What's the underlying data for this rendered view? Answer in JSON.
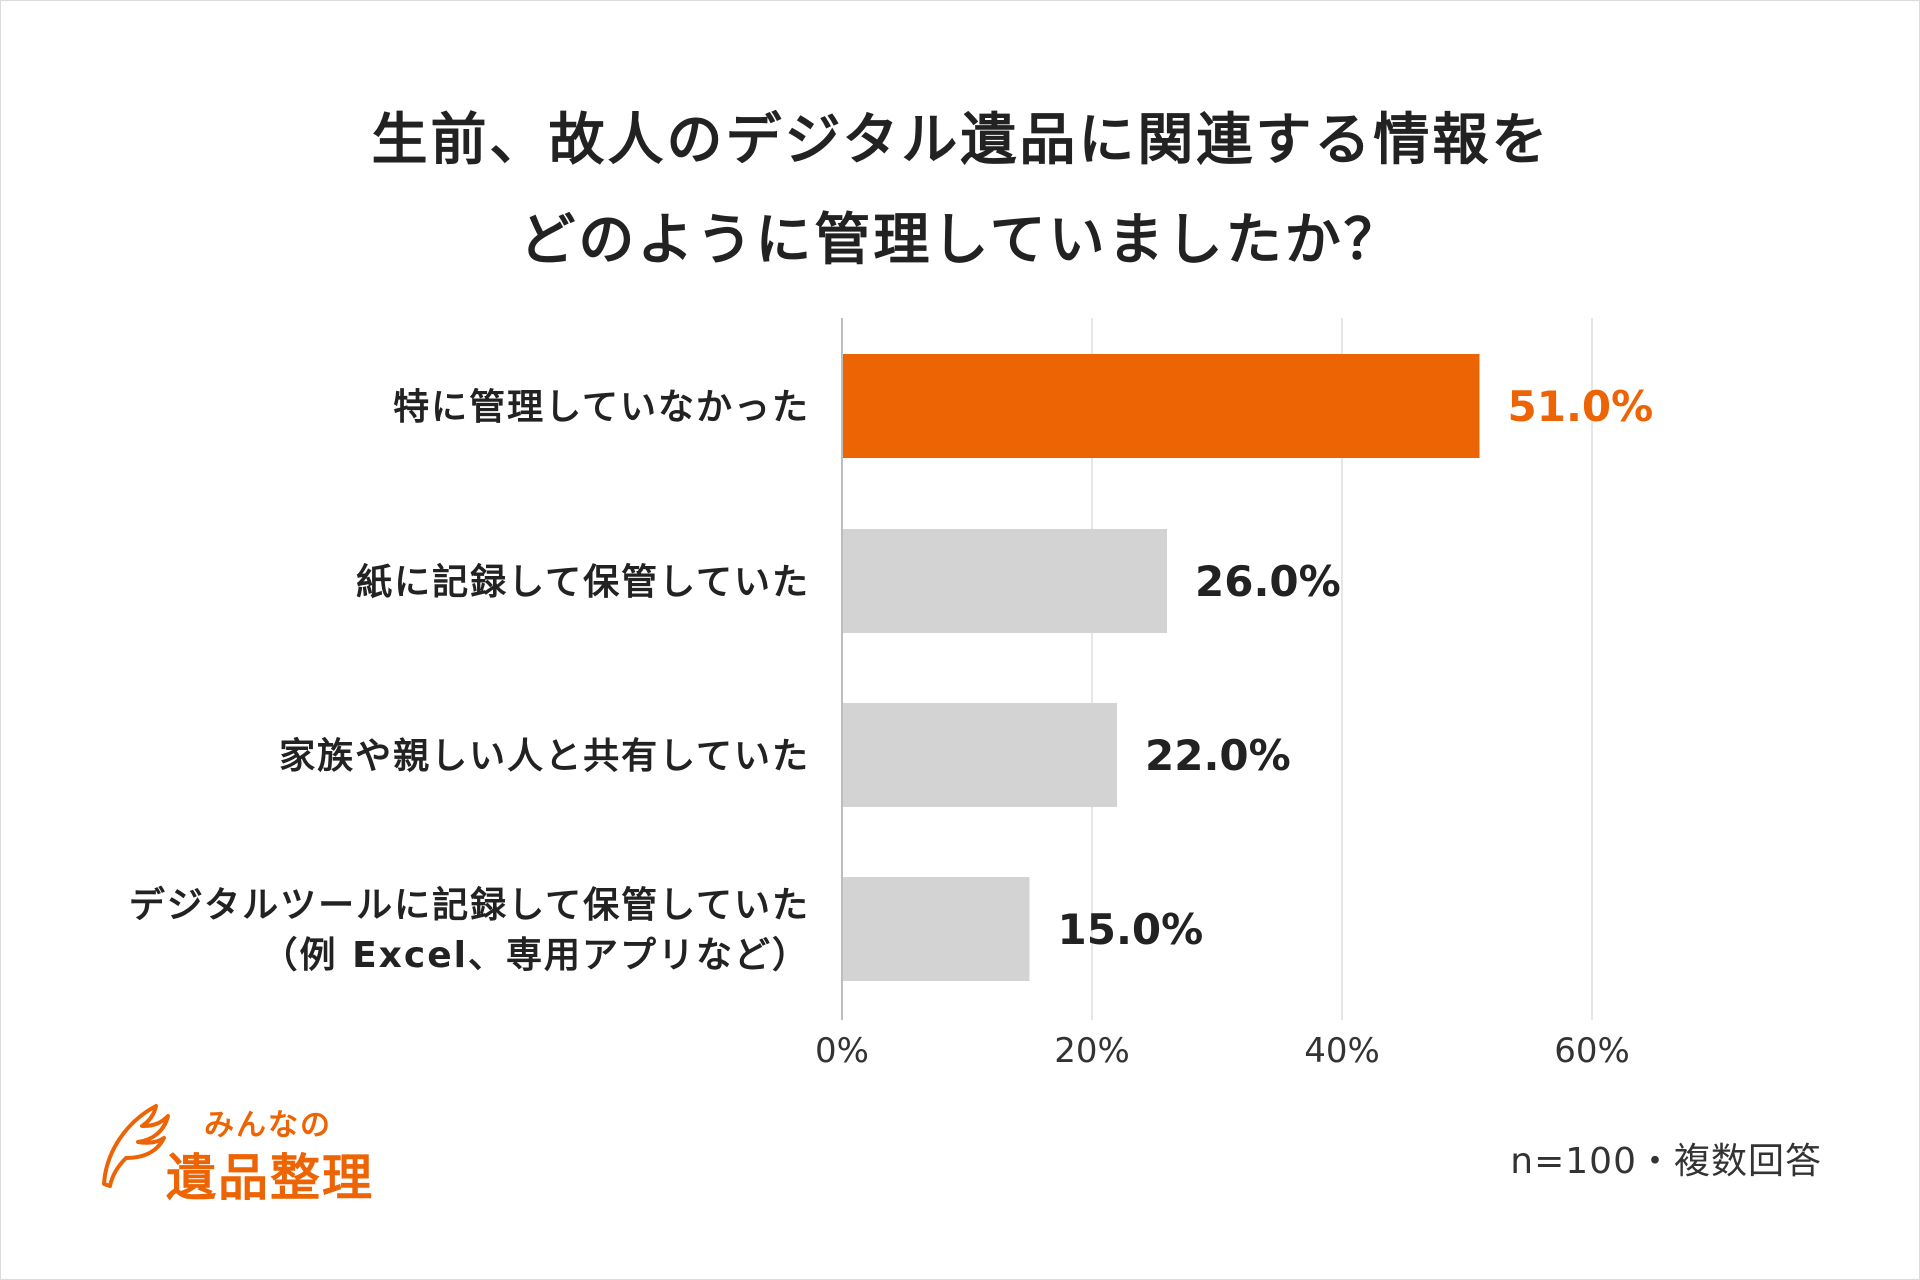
{
  "title_lines": [
    "生前、故人のデジタル遺品に関連する情報を",
    "どのように管理していましたか？"
  ],
  "chart_data": {
    "type": "bar",
    "orientation": "horizontal",
    "title": "生前、故人のデジタル遺品に関連する情報をどのように管理していましたか？",
    "categories": [
      [
        "特に管理していなかった"
      ],
      [
        "紙に記録して保管していた"
      ],
      [
        "家族や親しい人と共有していた"
      ],
      [
        "デジタルツールに記録して保管していた",
        "（例 Excel、専用アプリなど）"
      ]
    ],
    "values": [
      51.0,
      26.0,
      22.0,
      15.0
    ],
    "value_labels": [
      "51.0%",
      "26.0%",
      "22.0%",
      "15.0%"
    ],
    "highlight_index": 0,
    "xlim": [
      0,
      60
    ],
    "xticks": [
      0,
      20,
      40,
      60
    ],
    "xtick_labels": [
      "0%",
      "20%",
      "40%",
      "60%"
    ],
    "grid": true
  },
  "colors": {
    "highlight": "#EC6403",
    "bar": "#D3D3D3",
    "text": "#222222",
    "grid": "#E6E6E6"
  },
  "logo": {
    "top_text": "みんなの",
    "main_text": "遺品整理",
    "icon": "wing-icon"
  },
  "note": "n=100・複数回答"
}
